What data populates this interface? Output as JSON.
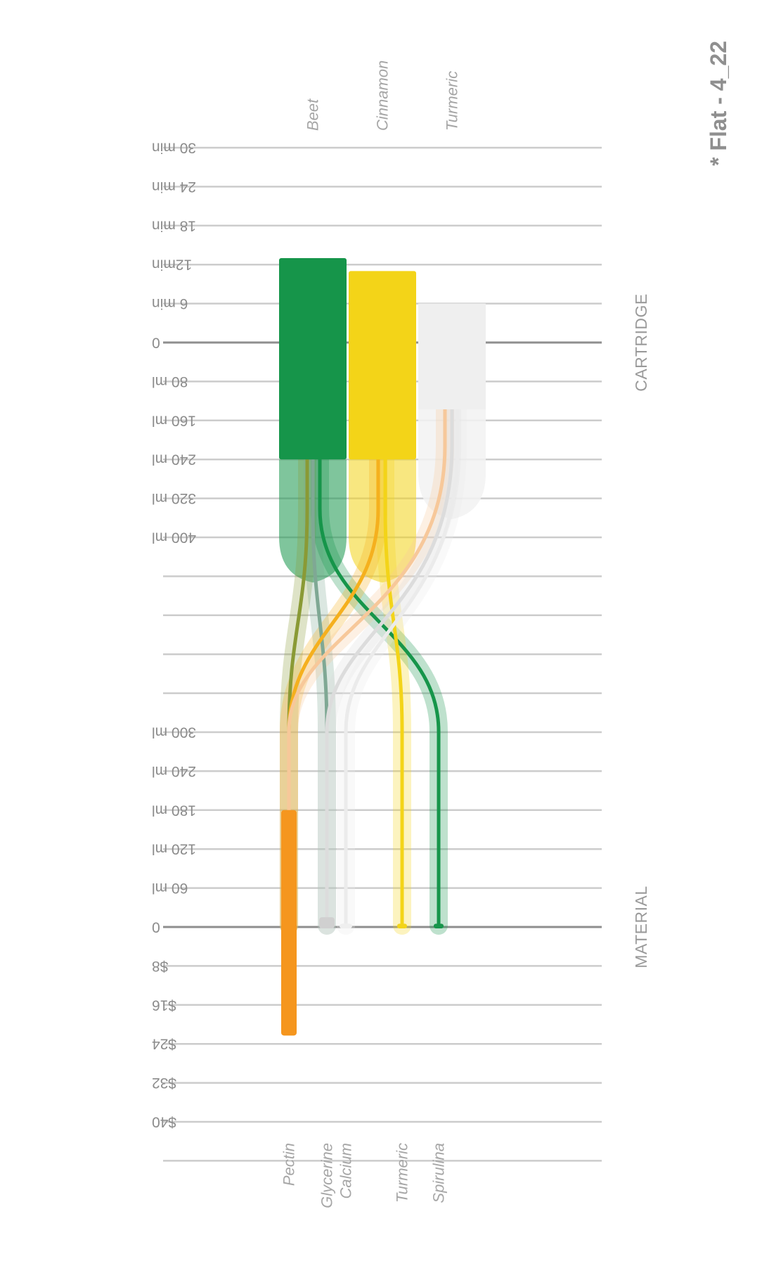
{
  "chart_data": {
    "type": "sankey",
    "title": "* Flat - 4_22",
    "sections": {
      "cartridge": "CARTRIDGE",
      "material": "MATERIAL"
    },
    "cartridge_axis": {
      "time_ticks": [
        "30 min",
        "24 min",
        "18 min",
        "12min",
        "6 min",
        "0"
      ],
      "volume_ticks": [
        "80 ml",
        "160 ml",
        "240 ml",
        "320 ml",
        "400 ml"
      ]
    },
    "material_axis": {
      "volume_ticks": [
        "300 ml",
        "240 ml",
        "180 ml",
        "120 ml",
        "60 ml",
        "0"
      ],
      "cost_ticks": [
        "$8",
        "$16",
        "$24",
        "$32",
        "$40"
      ]
    },
    "cartridges": [
      {
        "name": "Beet",
        "time_min": 13,
        "volume_ml": 240,
        "color": "#16954a"
      },
      {
        "name": "Cinnamon",
        "time_min": 11,
        "volume_ml": 240,
        "color": "#f3d418"
      },
      {
        "name": "Turmeric",
        "time_min": 6,
        "volume_ml": 110,
        "color": "#efefef"
      }
    ],
    "materials": [
      {
        "name": "Pectin",
        "volume_ml": 180,
        "cost_usd": 22,
        "color": "#f5961e"
      },
      {
        "name": "Glycerine",
        "volume_ml": 15,
        "cost_usd": 0,
        "color": "#d0d0d0"
      },
      {
        "name": "Calcium",
        "volume_ml": 5,
        "cost_usd": 0,
        "color": "#efefef"
      },
      {
        "name": "Turmeric",
        "volume_ml": 5,
        "cost_usd": 0,
        "color": "#f3d418"
      },
      {
        "name": "Spirulina",
        "volume_ml": 5,
        "cost_usd": 0,
        "color": "#16954a"
      }
    ],
    "flows": [
      {
        "from": "Beet",
        "to": "Pectin",
        "color": "#8a9a35"
      },
      {
        "from": "Beet",
        "to": "Glycerine",
        "color": "#7fa894"
      },
      {
        "from": "Beet",
        "to": "Spirulina",
        "color": "#16954a"
      },
      {
        "from": "Cinnamon",
        "to": "Pectin",
        "color": "#f5b01e"
      },
      {
        "from": "Cinnamon",
        "to": "Turmeric",
        "color": "#f3d418"
      },
      {
        "from": "Turmeric",
        "to": "Pectin",
        "color": "#f7c89a"
      },
      {
        "from": "Turmeric",
        "to": "Glycerine",
        "color": "#dcdcdc"
      },
      {
        "from": "Turmeric",
        "to": "Calcium",
        "color": "#ebebeb"
      }
    ]
  }
}
